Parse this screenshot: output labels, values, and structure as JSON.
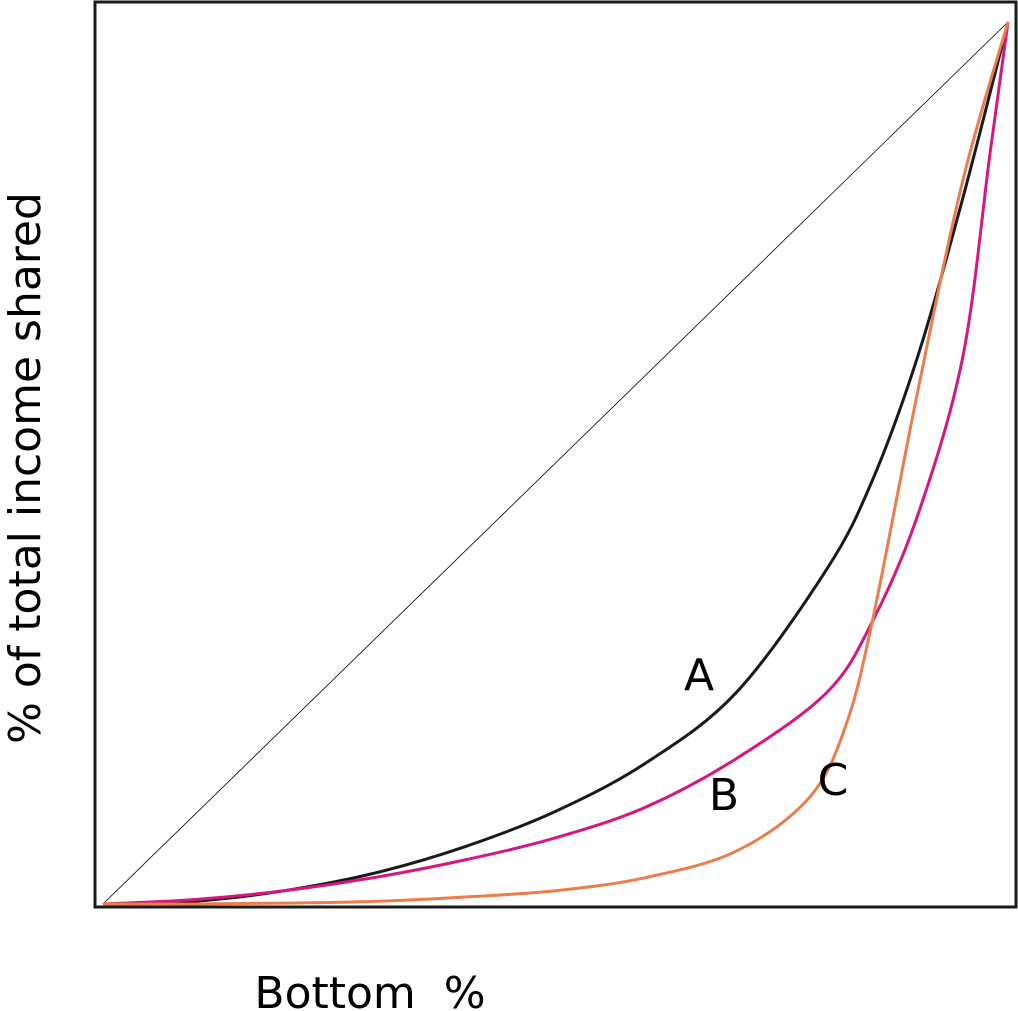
{
  "chart_data": {
    "type": "line",
    "title": "",
    "xlabel": "Bottom  %",
    "ylabel": "% of total income shared",
    "xlim": [
      0,
      100
    ],
    "ylim": [
      0,
      100
    ],
    "grid": false,
    "legend": "none",
    "series": [
      {
        "key": "equality",
        "color": "#000000",
        "points": [
          [
            0,
            0
          ],
          [
            100,
            100
          ]
        ]
      },
      {
        "key": "A",
        "name": "A",
        "color": "#1a1a1a",
        "points": [
          [
            0,
            0
          ],
          [
            10,
            0.3
          ],
          [
            20,
            1.5
          ],
          [
            30,
            3.5
          ],
          [
            40,
            6.5
          ],
          [
            50,
            10.5
          ],
          [
            60,
            16
          ],
          [
            70,
            24
          ],
          [
            80,
            38
          ],
          [
            85,
            48
          ],
          [
            90,
            62
          ],
          [
            95,
            80
          ],
          [
            100,
            100
          ]
        ]
      },
      {
        "key": "B",
        "name": "B",
        "color": "#d6177f",
        "points": [
          [
            0,
            0
          ],
          [
            10,
            0.5
          ],
          [
            20,
            1.5
          ],
          [
            30,
            3
          ],
          [
            40,
            5
          ],
          [
            50,
            7.5
          ],
          [
            60,
            11
          ],
          [
            70,
            16.5
          ],
          [
            80,
            24
          ],
          [
            85,
            32
          ],
          [
            90,
            44
          ],
          [
            95,
            62
          ],
          [
            98,
            85
          ],
          [
            100,
            100
          ]
        ]
      },
      {
        "key": "C",
        "name": "C",
        "color": "#eb7d4b",
        "points": [
          [
            0,
            0
          ],
          [
            10,
            0
          ],
          [
            20,
            0.1
          ],
          [
            30,
            0.3
          ],
          [
            40,
            0.8
          ],
          [
            50,
            1.5
          ],
          [
            60,
            3
          ],
          [
            70,
            6
          ],
          [
            78,
            12
          ],
          [
            82,
            20
          ],
          [
            85,
            32
          ],
          [
            90,
            58
          ],
          [
            95,
            82
          ],
          [
            100,
            100
          ]
        ]
      }
    ],
    "annotations": [
      {
        "text": "A",
        "series": "A"
      },
      {
        "text": "B",
        "series": "B"
      },
      {
        "text": "C",
        "series": "C"
      }
    ]
  }
}
